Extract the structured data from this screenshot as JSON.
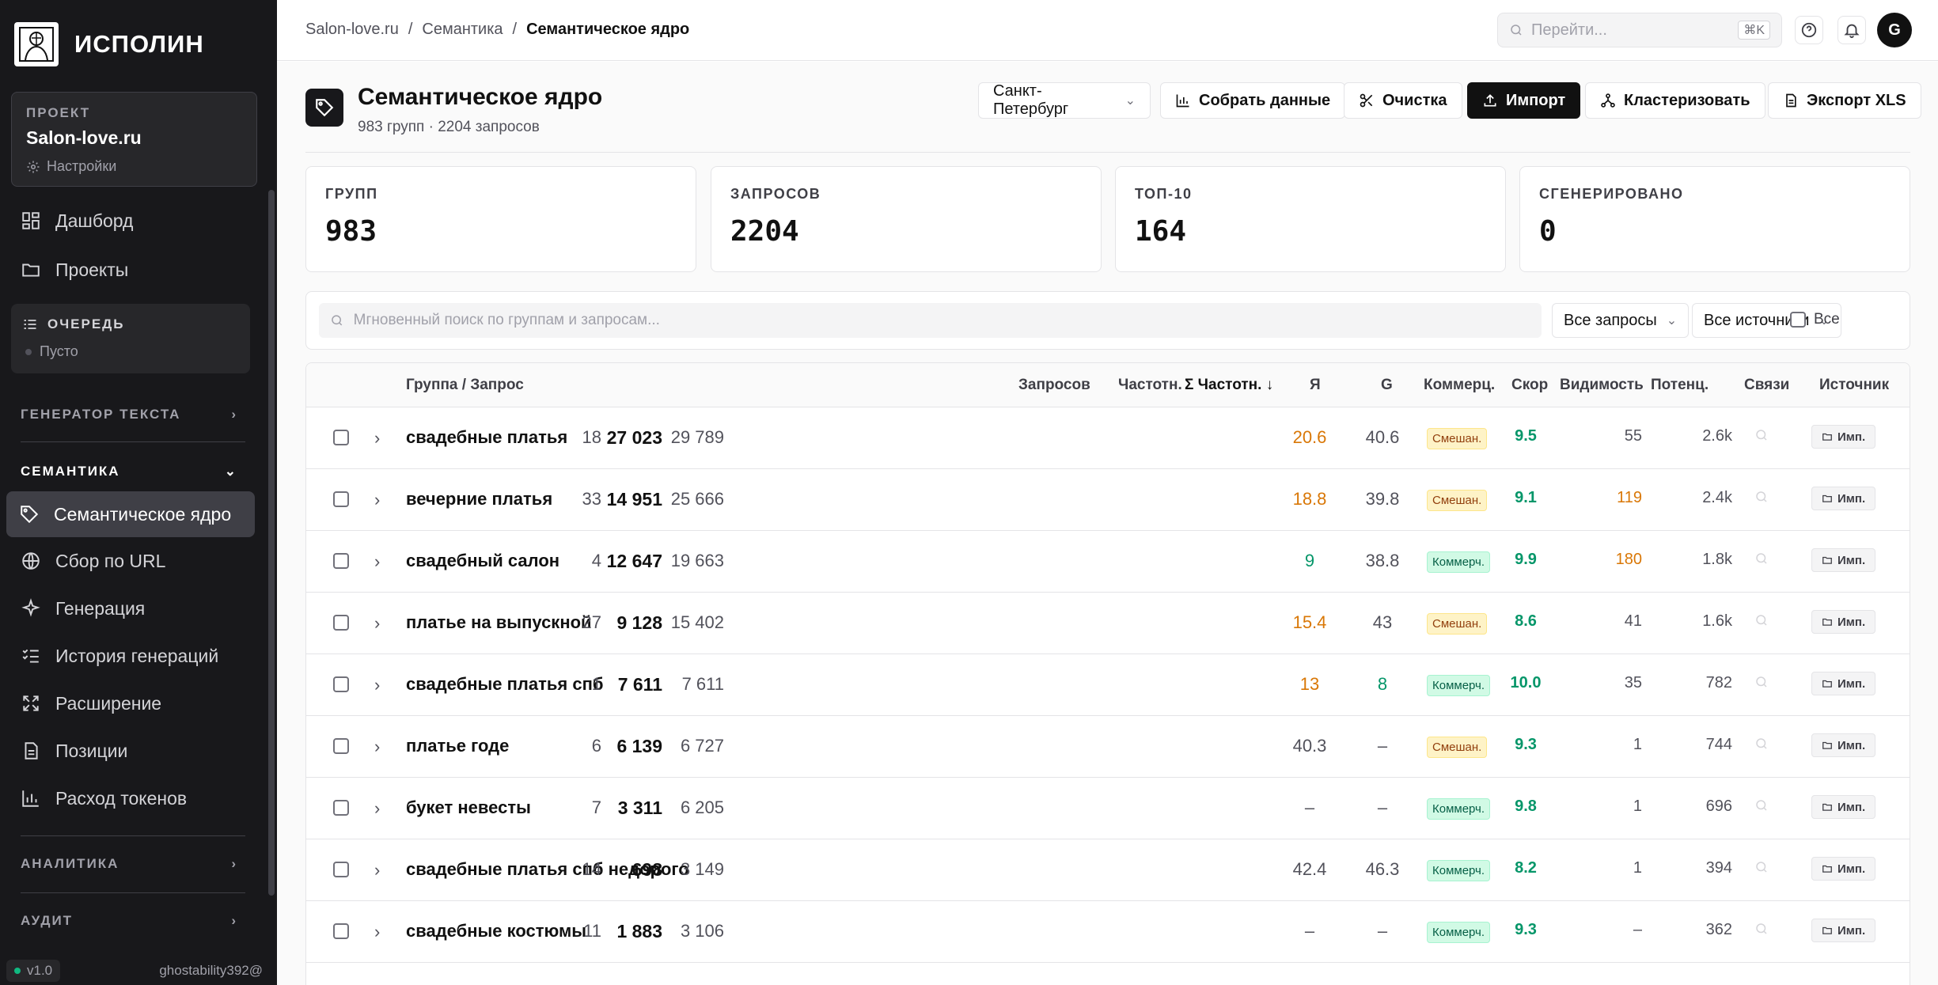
{
  "sidebar": {
    "logo_text": "ИСПОЛИН",
    "project": {
      "label": "ПРОЕКТ",
      "name": "Salon-love.ru",
      "settings": "Настройки"
    },
    "nav_top": [
      {
        "label": "Дашборд",
        "icon": "dashboard-icon"
      },
      {
        "label": "Проекты",
        "icon": "folder-icon"
      }
    ],
    "queue": {
      "title": "ОЧЕРЕДЬ",
      "status": "Пусто"
    },
    "sections": {
      "text_gen": "ГЕНЕРАТОР ТЕКСТА",
      "semantics": "СЕМАНТИКА",
      "analytics": "АНАЛИТИКА",
      "audit": "АУДИТ"
    },
    "semantics_items": [
      {
        "label": "Семантическое ядро",
        "icon": "tag-icon",
        "active": true
      },
      {
        "label": "Сбор по URL",
        "icon": "globe-icon"
      },
      {
        "label": "Генерация",
        "icon": "sparkles-icon"
      },
      {
        "label": "История генераций",
        "icon": "list-check-icon"
      },
      {
        "label": "Расширение",
        "icon": "expand-icon"
      },
      {
        "label": "Позиции",
        "icon": "file-icon"
      },
      {
        "label": "Расход токенов",
        "icon": "bar-chart-icon"
      }
    ],
    "version": "v1.0",
    "user": "ghostability392@"
  },
  "topbar": {
    "breadcrumbs": [
      "Salon-love.ru",
      "Семантика",
      "Семантическое ядро"
    ],
    "goto_placeholder": "Перейти...",
    "shortcut": "⌘K",
    "avatar": "G"
  },
  "page": {
    "title": "Семантическое ядро",
    "subtitle": "983 групп · 2204 запросов",
    "city": "Санкт-Петербург",
    "buttons": {
      "collect": "Собрать данные",
      "clean": "Очистка",
      "import": "Импорт",
      "cluster": "Кластеризовать",
      "export": "Экспорт XLS"
    }
  },
  "stats": [
    {
      "label": "ГРУПП",
      "value": "983"
    },
    {
      "label": "ЗАПРОСОВ",
      "value": "2204"
    },
    {
      "label": "ТОП-10",
      "value": "164"
    },
    {
      "label": "СГЕНЕРИРОВАНО",
      "value": "0"
    }
  ],
  "filters": {
    "search_placeholder": "Мгновенный поиск по группам и запросам...",
    "queries": "Все запросы",
    "sources": "Все источники",
    "all": "Все"
  },
  "table": {
    "headers": {
      "group": "Группа / Запрос",
      "queries": "Запросов",
      "freq": "Частотн.",
      "sum_freq": "Σ Частотн. ↓",
      "ya": "Я",
      "g": "G",
      "commerce": "Коммерц.",
      "score": "Скор",
      "visibility": "Видимость",
      "potential": "Потенц.",
      "links": "Связи",
      "source": "Источник"
    },
    "rows": [
      {
        "name": "свадебные платья",
        "queries": "18",
        "freq": "27 023",
        "sum": "29 789",
        "ya": "20.6",
        "ya_color": "orange",
        "g": "40.6",
        "g_color": "",
        "commerce": "Смешан.",
        "ctype": "mixed",
        "score": "9.5",
        "vis": "55",
        "vis_color": "",
        "pot": "2.6k",
        "src": "Имп."
      },
      {
        "name": "вечерние платья",
        "queries": "33",
        "freq": "14 951",
        "sum": "25 666",
        "ya": "18.8",
        "ya_color": "orange",
        "g": "39.8",
        "g_color": "",
        "commerce": "Смешан.",
        "ctype": "mixed",
        "score": "9.1",
        "vis": "119",
        "vis_color": "orange",
        "pot": "2.4k",
        "src": "Имп."
      },
      {
        "name": "свадебный салон",
        "queries": "4",
        "freq": "12 647",
        "sum": "19 663",
        "ya": "9",
        "ya_color": "green",
        "g": "38.8",
        "g_color": "",
        "commerce": "Коммерч.",
        "ctype": "comm",
        "score": "9.9",
        "vis": "180",
        "vis_color": "orange",
        "pot": "1.8k",
        "src": "Имп."
      },
      {
        "name": "платье на выпускной",
        "queries": "27",
        "freq": "9 128",
        "sum": "15 402",
        "ya": "15.4",
        "ya_color": "orange",
        "g": "43",
        "g_color": "",
        "commerce": "Смешан.",
        "ctype": "mixed",
        "score": "8.6",
        "vis": "41",
        "vis_color": "",
        "pot": "1.6k",
        "src": "Имп."
      },
      {
        "name": "свадебные платья спб",
        "queries": "1",
        "freq": "7 611",
        "sum": "7 611",
        "ya": "13",
        "ya_color": "orange",
        "g": "8",
        "g_color": "green",
        "commerce": "Коммерч.",
        "ctype": "comm",
        "score": "10.0",
        "vis": "35",
        "vis_color": "",
        "pot": "782",
        "src": "Имп."
      },
      {
        "name": "платье годе",
        "queries": "6",
        "freq": "6 139",
        "sum": "6 727",
        "ya": "40.3",
        "ya_color": "",
        "g": "–",
        "g_color": "",
        "commerce": "Смешан.",
        "ctype": "mixed",
        "score": "9.3",
        "vis": "1",
        "vis_color": "",
        "pot": "744",
        "src": "Имп."
      },
      {
        "name": "букет невесты",
        "queries": "7",
        "freq": "3 311",
        "sum": "6 205",
        "ya": "–",
        "ya_color": "",
        "g": "–",
        "g_color": "",
        "commerce": "Коммерч.",
        "ctype": "comm",
        "score": "9.8",
        "vis": "1",
        "vis_color": "",
        "pot": "696",
        "src": "Имп."
      },
      {
        "name": "свадебные платья спб недорого",
        "queries": "14",
        "freq": "698",
        "sum": "3 149",
        "ya": "42.4",
        "ya_color": "",
        "g": "46.3",
        "g_color": "",
        "commerce": "Коммерч.",
        "ctype": "comm",
        "score": "8.2",
        "vis": "1",
        "vis_color": "",
        "pot": "394",
        "src": "Имп."
      },
      {
        "name": "свадебные костюмы",
        "queries": "11",
        "freq": "1 883",
        "sum": "3 106",
        "ya": "–",
        "ya_color": "",
        "g": "–",
        "g_color": "",
        "commerce": "Коммерч.",
        "ctype": "comm",
        "score": "9.3",
        "vis": "–",
        "vis_color": "",
        "pot": "362",
        "src": "Имп."
      }
    ]
  }
}
